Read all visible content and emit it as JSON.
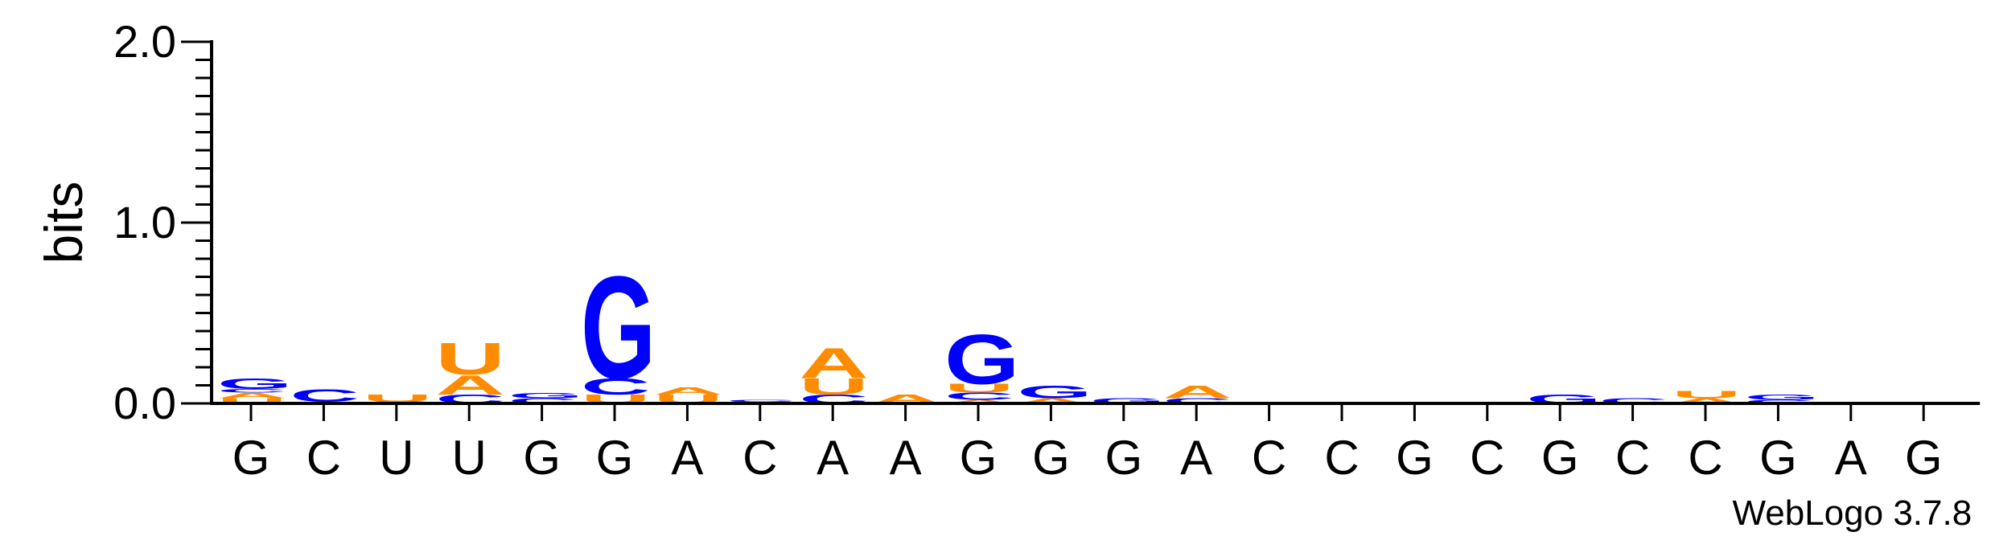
{
  "chart_data": {
    "type": "sequence-logo",
    "ylabel": "bits",
    "ylim": [
      0,
      2.0
    ],
    "yticks": [
      {
        "value": 0.0,
        "label": "0.0"
      },
      {
        "value": 1.0,
        "label": "1.0"
      },
      {
        "value": 2.0,
        "label": "2.0"
      }
    ],
    "credit": "WebLogo 3.7.8",
    "colors": {
      "G": "#0000ff",
      "C": "#0000ff",
      "A": "#ff8c00",
      "U": "#ff8c00"
    },
    "sequence": [
      "G",
      "C",
      "U",
      "U",
      "G",
      "G",
      "A",
      "C",
      "A",
      "A",
      "G",
      "G",
      "G",
      "A",
      "C",
      "C",
      "G",
      "C",
      "G",
      "C",
      "C",
      "G",
      "A",
      "G"
    ],
    "stacks": [
      [
        {
          "letter": "U",
          "bits": 0.03
        },
        {
          "letter": "A",
          "bits": 0.03
        },
        {
          "letter": "C",
          "bits": 0.02
        },
        {
          "letter": "G",
          "bits": 0.06
        }
      ],
      [
        {
          "letter": "A",
          "bits": 0.01
        },
        {
          "letter": "C",
          "bits": 0.07
        }
      ],
      [
        {
          "letter": "C",
          "bits": 0.01
        },
        {
          "letter": "U",
          "bits": 0.04
        }
      ],
      [
        {
          "letter": "C",
          "bits": 0.05
        },
        {
          "letter": "A",
          "bits": 0.11
        },
        {
          "letter": "U",
          "bits": 0.18
        }
      ],
      [
        {
          "letter": "C",
          "bits": 0.03
        },
        {
          "letter": "G",
          "bits": 0.03
        }
      ],
      [
        {
          "letter": "U",
          "bits": 0.05
        },
        {
          "letter": "C",
          "bits": 0.09
        },
        {
          "letter": "G",
          "bits": 0.58
        }
      ],
      [
        {
          "letter": "U",
          "bits": 0.05
        },
        {
          "letter": "A",
          "bits": 0.04
        }
      ],
      [
        {
          "letter": "U",
          "bits": 0.01
        },
        {
          "letter": "C",
          "bits": 0.01
        }
      ],
      [
        {
          "letter": "C",
          "bits": 0.05
        },
        {
          "letter": "U",
          "bits": 0.09
        },
        {
          "letter": "A",
          "bits": 0.17
        }
      ],
      [
        {
          "letter": "A",
          "bits": 0.05
        }
      ],
      [
        {
          "letter": "A",
          "bits": 0.02
        },
        {
          "letter": "C",
          "bits": 0.04
        },
        {
          "letter": "U",
          "bits": 0.05
        },
        {
          "letter": "G",
          "bits": 0.28
        }
      ],
      [
        {
          "letter": "A",
          "bits": 0.03
        },
        {
          "letter": "G",
          "bits": 0.07
        }
      ],
      [
        {
          "letter": "G",
          "bits": 0.03
        }
      ],
      [
        {
          "letter": "C",
          "bits": 0.03
        },
        {
          "letter": "A",
          "bits": 0.07
        }
      ],
      [],
      [],
      [],
      [],
      [
        {
          "letter": "G",
          "bits": 0.05
        }
      ],
      [
        {
          "letter": "C",
          "bits": 0.03
        }
      ],
      [
        {
          "letter": "A",
          "bits": 0.03
        },
        {
          "letter": "U",
          "bits": 0.04
        }
      ],
      [
        {
          "letter": "C",
          "bits": 0.02
        },
        {
          "letter": "G",
          "bits": 0.03
        }
      ],
      [],
      []
    ]
  }
}
